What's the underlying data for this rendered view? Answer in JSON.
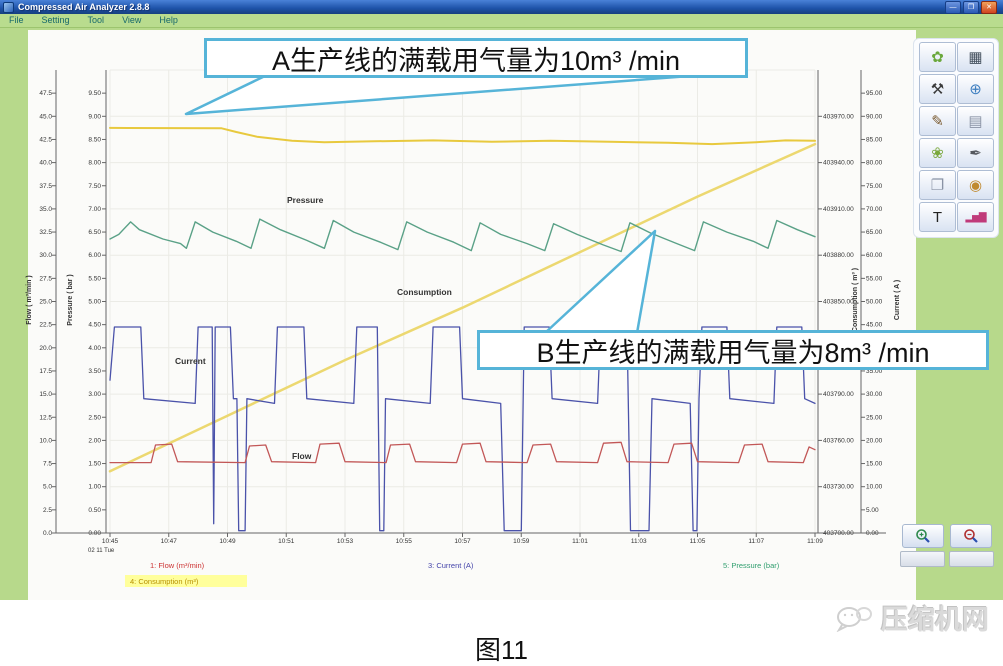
{
  "window": {
    "title": "Compressed Air Analyzer 2.8.8",
    "controls": [
      {
        "name": "minimize-button",
        "glyph": "—"
      },
      {
        "name": "maximize-button",
        "glyph": "❒"
      },
      {
        "name": "close-button",
        "glyph": "✕"
      }
    ]
  },
  "menu": {
    "items": [
      "File",
      "Setting",
      "Tool",
      "View",
      "Help"
    ]
  },
  "callouts": {
    "a": "A生产线的满载用气量为10m³ /min",
    "b": "B生产线的满载用气量为8m³ /min"
  },
  "chart_data": {
    "type": "line",
    "x_axis": {
      "tick_labels": [
        "10:45",
        "10:47",
        "10:49",
        "10:51",
        "10:53",
        "10:55",
        "10:57",
        "10:59",
        "11:01",
        "11:03",
        "11:05",
        "11:07",
        "11:09"
      ],
      "date_label": "02 11 Tue",
      "span_minutes": 24
    },
    "y_axes": {
      "flow": {
        "title": "Flow ( m³/min )",
        "min": 0,
        "max": 50,
        "tick_top": 47.5,
        "tick_step": 2.5,
        "decimals": 1
      },
      "pressure": {
        "title": "Pressure ( bar )",
        "min": 0,
        "max": 10,
        "tick_top": 9.5,
        "tick_step": 0.5,
        "decimals": 2
      },
      "consumption": {
        "title": "Consumption ( m³ )",
        "min": 403700,
        "max": 404000,
        "tick_top": 403970,
        "tick_step": 30,
        "decimals": 2
      },
      "current": {
        "title": "Current ( A )",
        "min": 0,
        "max": 100,
        "tick_top": 95,
        "tick_step": 5,
        "decimals": 2
      }
    },
    "series": [
      {
        "name": "upper-yellow-line",
        "axis": "pressure",
        "color": "#e8c93e",
        "width": 2,
        "points": [
          [
            0,
            8.75
          ],
          [
            3.8,
            8.74
          ],
          [
            4.3,
            8.66
          ],
          [
            5.0,
            8.56
          ],
          [
            6.2,
            8.47
          ],
          [
            7.3,
            8.44
          ],
          [
            9,
            8.46
          ],
          [
            11,
            8.48
          ],
          [
            13,
            8.45
          ],
          [
            15,
            8.47
          ],
          [
            17,
            8.45
          ],
          [
            19,
            8.43
          ],
          [
            20.5,
            8.4
          ],
          [
            22,
            8.44
          ],
          [
            23,
            8.48
          ],
          [
            24,
            8.47
          ]
        ]
      },
      {
        "name": "Consumption",
        "axis": "consumption",
        "color": "#ecd870",
        "width": 2.5,
        "points": [
          [
            0,
            403740
          ],
          [
            4,
            403776
          ],
          [
            8,
            403812
          ],
          [
            12,
            403846
          ],
          [
            16,
            403882
          ],
          [
            20,
            403918
          ],
          [
            24,
            403952
          ]
        ]
      },
      {
        "name": "Pressure",
        "axis": "pressure",
        "color": "#5aa187",
        "width": 1.4,
        "points": [
          [
            0,
            6.35
          ],
          [
            0.3,
            6.45
          ],
          [
            0.7,
            6.72
          ],
          [
            1.0,
            6.55
          ],
          [
            1.8,
            6.35
          ],
          [
            2.4,
            6.25
          ],
          [
            2.6,
            6.15
          ],
          [
            2.9,
            6.72
          ],
          [
            3.5,
            6.5
          ],
          [
            4.3,
            6.3
          ],
          [
            4.8,
            6.15
          ],
          [
            5.1,
            6.78
          ],
          [
            5.8,
            6.55
          ],
          [
            6.7,
            6.32
          ],
          [
            7.3,
            6.15
          ],
          [
            7.6,
            6.75
          ],
          [
            8.3,
            6.5
          ],
          [
            9.2,
            6.28
          ],
          [
            9.8,
            6.12
          ],
          [
            10.1,
            6.72
          ],
          [
            10.8,
            6.5
          ],
          [
            11.7,
            6.28
          ],
          [
            12.3,
            6.1
          ],
          [
            12.6,
            6.7
          ],
          [
            13.3,
            6.45
          ],
          [
            14.2,
            6.25
          ],
          [
            14.8,
            6.1
          ],
          [
            15.1,
            6.68
          ],
          [
            15.9,
            6.45
          ],
          [
            16.8,
            6.22
          ],
          [
            17.4,
            6.08
          ],
          [
            17.7,
            6.7
          ],
          [
            18.4,
            6.48
          ],
          [
            19.3,
            6.25
          ],
          [
            19.9,
            6.1
          ],
          [
            20.2,
            6.72
          ],
          [
            21,
            6.5
          ],
          [
            21.9,
            6.3
          ],
          [
            22.4,
            6.15
          ],
          [
            22.7,
            6.75
          ],
          [
            23.4,
            6.55
          ],
          [
            24,
            6.4
          ]
        ]
      },
      {
        "name": "Current",
        "axis": "current",
        "color": "#4a52aa",
        "width": 1.3,
        "points": [
          [
            0,
            33
          ],
          [
            0.15,
            44.5
          ],
          [
            1.05,
            44.5
          ],
          [
            1.15,
            29
          ],
          [
            2.9,
            28
          ],
          [
            3.0,
            44.5
          ],
          [
            3.48,
            44.5
          ],
          [
            3.53,
            2
          ],
          [
            3.58,
            44.5
          ],
          [
            4.1,
            44.5
          ],
          [
            4.2,
            29
          ],
          [
            4.32,
            29
          ],
          [
            4.38,
            0.5
          ],
          [
            4.6,
            0.5
          ],
          [
            4.66,
            29
          ],
          [
            5.6,
            28
          ],
          [
            5.7,
            44.5
          ],
          [
            6.6,
            44.5
          ],
          [
            6.7,
            29
          ],
          [
            8.3,
            28
          ],
          [
            8.4,
            44.5
          ],
          [
            9.1,
            44.5
          ],
          [
            9.18,
            0.5
          ],
          [
            9.32,
            0.5
          ],
          [
            9.38,
            29
          ],
          [
            10.9,
            28
          ],
          [
            11.0,
            44.5
          ],
          [
            11.9,
            44.5
          ],
          [
            12.0,
            29
          ],
          [
            13.3,
            28
          ],
          [
            13.42,
            0.5
          ],
          [
            14.0,
            0.5
          ],
          [
            14.1,
            44.5
          ],
          [
            14.95,
            44.5
          ],
          [
            15.05,
            29
          ],
          [
            16.6,
            28
          ],
          [
            16.7,
            44.5
          ],
          [
            17.6,
            44.5
          ],
          [
            17.72,
            0.5
          ],
          [
            18.35,
            0.5
          ],
          [
            18.45,
            29
          ],
          [
            19.75,
            28
          ],
          [
            19.85,
            0.5
          ],
          [
            19.98,
            0.5
          ],
          [
            20.05,
            29
          ],
          [
            20.15,
            44.5
          ],
          [
            21.0,
            44.5
          ],
          [
            21.1,
            29
          ],
          [
            22.6,
            28
          ],
          [
            22.7,
            44.5
          ],
          [
            23.55,
            44.5
          ],
          [
            23.65,
            29
          ],
          [
            24,
            28
          ]
        ]
      },
      {
        "name": "Flow",
        "axis": "flow",
        "color": "#c25757",
        "width": 1.3,
        "points": [
          [
            0,
            7.6
          ],
          [
            1.4,
            7.6
          ],
          [
            1.55,
            9.5
          ],
          [
            2.1,
            9.6
          ],
          [
            2.3,
            7.7
          ],
          [
            4.6,
            7.6
          ],
          [
            4.75,
            9.4
          ],
          [
            5.3,
            9.5
          ],
          [
            5.5,
            7.7
          ],
          [
            7.0,
            7.6
          ],
          [
            7.15,
            9.6
          ],
          [
            7.8,
            9.7
          ],
          [
            8.0,
            7.7
          ],
          [
            9.4,
            7.6
          ],
          [
            9.55,
            9.5
          ],
          [
            10.2,
            9.6
          ],
          [
            10.4,
            7.7
          ],
          [
            11.8,
            7.6
          ],
          [
            12.0,
            9.6
          ],
          [
            12.6,
            9.7
          ],
          [
            12.8,
            7.7
          ],
          [
            14.2,
            7.6
          ],
          [
            14.4,
            9.5
          ],
          [
            15.0,
            9.6
          ],
          [
            15.2,
            7.7
          ],
          [
            16.6,
            7.6
          ],
          [
            16.8,
            9.7
          ],
          [
            17.4,
            9.8
          ],
          [
            17.6,
            7.7
          ],
          [
            19.0,
            7.6
          ],
          [
            19.2,
            9.6
          ],
          [
            19.8,
            9.7
          ],
          [
            20.0,
            7.7
          ],
          [
            21.4,
            7.6
          ],
          [
            21.6,
            9.5
          ],
          [
            22.2,
            9.6
          ],
          [
            22.4,
            7.7
          ],
          [
            23.6,
            7.6
          ],
          [
            23.8,
            9.3
          ],
          [
            24,
            9.0
          ]
        ]
      }
    ],
    "series_labels": [
      "Pressure",
      "Consumption",
      "Current",
      "Flow"
    ],
    "legend": [
      {
        "label": "1: Flow (m³/min)",
        "color": "#cc3333",
        "highlight": false
      },
      {
        "label": "4: Consumption (m³)",
        "color": "#b89000",
        "highlight": true
      },
      {
        "label": "3: Current (A)",
        "color": "#4444aa",
        "highlight": false
      },
      {
        "label": "5: Pressure (bar)",
        "color": "#2f9e6e",
        "highlight": false
      }
    ]
  },
  "toolbar": {
    "buttons": [
      {
        "name": "leaf-report-icon",
        "glyph": "✿",
        "color": "#6aa83c"
      },
      {
        "name": "calculator-icon",
        "glyph": "▦",
        "color": "#44505e"
      },
      {
        "name": "tools-icon",
        "glyph": "⚒",
        "color": "#3a3a3a"
      },
      {
        "name": "globe-icon",
        "glyph": "⊕",
        "color": "#3f7fc0"
      },
      {
        "name": "chart-edit-icon",
        "glyph": "✎",
        "color": "#7a5a30"
      },
      {
        "name": "documents-icon",
        "glyph": "▤",
        "color": "#8a93a5"
      },
      {
        "name": "plant-icon",
        "glyph": "❀",
        "color": "#7aa83c"
      },
      {
        "name": "quill-icon",
        "glyph": "✒",
        "color": "#55585e"
      },
      {
        "name": "book-icon",
        "glyph": "❐",
        "color": "#8a93a5"
      },
      {
        "name": "stamp-icon",
        "glyph": "◉",
        "color": "#c08a30"
      },
      {
        "name": "text-icon",
        "glyph": "T",
        "color": "#222222"
      },
      {
        "name": "bar-chart-icon",
        "glyph": "▂▅▇",
        "color": "#c03a7a"
      }
    ]
  },
  "caption": "图11",
  "watermark": "压缩机网"
}
